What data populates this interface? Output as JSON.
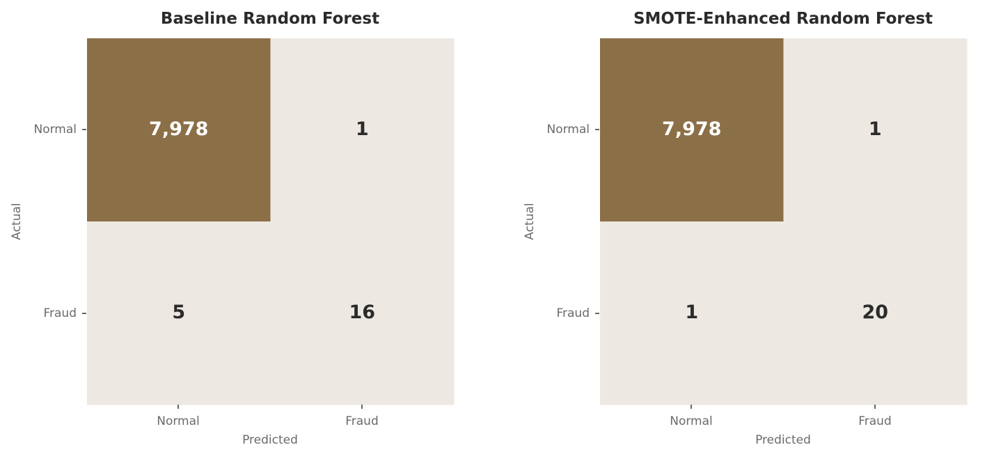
{
  "chart_data": [
    {
      "type": "heatmap",
      "title": "Baseline Random Forest",
      "xlabel": "Predicted",
      "ylabel": "Actual",
      "x_categories": [
        "Normal",
        "Fraud"
      ],
      "y_categories": [
        "Normal",
        "Fraud"
      ],
      "values": [
        [
          7978,
          1
        ],
        [
          5,
          16
        ]
      ],
      "value_labels": [
        [
          "7,978",
          "1"
        ],
        [
          "5",
          "16"
        ]
      ],
      "grid": false
    },
    {
      "type": "heatmap",
      "title": "SMOTE-Enhanced Random Forest",
      "xlabel": "Predicted",
      "ylabel": "Actual",
      "x_categories": [
        "Normal",
        "Fraud"
      ],
      "y_categories": [
        "Normal",
        "Fraud"
      ],
      "values": [
        [
          7978,
          1
        ],
        [
          1,
          20
        ]
      ],
      "value_labels": [
        [
          "7,978",
          "1"
        ],
        [
          "1",
          "20"
        ]
      ],
      "grid": false
    }
  ],
  "colors": {
    "high_cell": "#8b6f47",
    "low_cell": "#ede9e2",
    "text_on_high": "#ffffff",
    "text_on_low": "#2b2b2b",
    "tick_mark": "#333333"
  }
}
